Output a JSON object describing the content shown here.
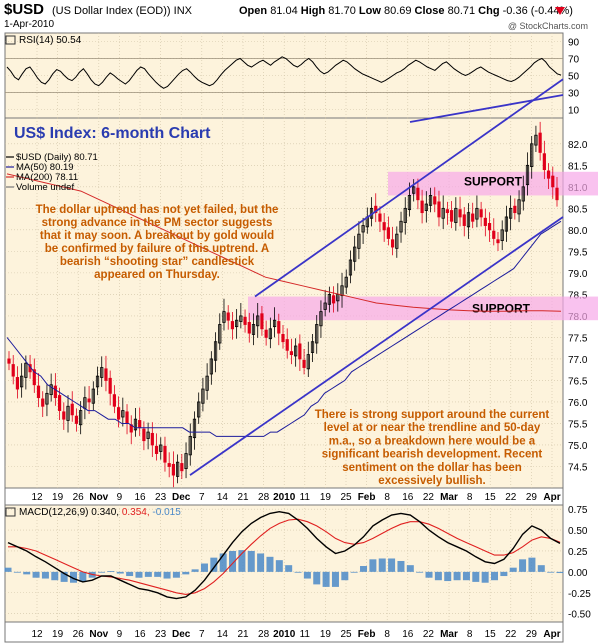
{
  "header": {
    "symbol": "$USD",
    "name": "(US Dollar Index (EOD)) INX",
    "date": "1-Apr-2010",
    "open_label": "Open",
    "open": "81.04",
    "high_label": "High",
    "high": "81.70",
    "low_label": "Low",
    "low": "80.69",
    "close_label": "Close",
    "close": "80.71",
    "chg_label": "Chg",
    "chg": "-0.36 (-0.44%)",
    "watermark": "@ StockCharts.com"
  },
  "colors": {
    "background": "#fdf3dc",
    "rsi_line": "#000000",
    "price_up": "#000000",
    "price_down": "#e0001b",
    "ma50": "#1c1c9c",
    "ma200": "#d42828",
    "trendline": "#3a34c8",
    "support_band": "#f6a8e8",
    "annotation": "#c65c00",
    "title": "#2a3cb0",
    "macd_line": "#000000",
    "signal_line": "#e02020",
    "histogram": "#4a88c8"
  },
  "chart_data": [
    {
      "type": "line",
      "panel": "rsi",
      "label": "RSI(14) 50.54",
      "ylim": [
        0,
        100
      ],
      "ticks": [
        10,
        30,
        50,
        70,
        90
      ],
      "reference_lines": [
        30,
        70
      ],
      "series": [
        {
          "name": "RSI(14)",
          "values": [
            60,
            55,
            48,
            45,
            52,
            58,
            60,
            54,
            47,
            42,
            40,
            45,
            52,
            57,
            55,
            50,
            46,
            44,
            48,
            54,
            58,
            52,
            45,
            40,
            38,
            42,
            48,
            53,
            50,
            46,
            43,
            40,
            44,
            50,
            56,
            60,
            58,
            52,
            47,
            42,
            38,
            35,
            37,
            42,
            47,
            52,
            56,
            58,
            54,
            49,
            45,
            42,
            40,
            38,
            40,
            45,
            51,
            56,
            60,
            64,
            68,
            70,
            66,
            62,
            60,
            63,
            66,
            68,
            65,
            62,
            66,
            69,
            72,
            70,
            66,
            62,
            60,
            63,
            67,
            70,
            66,
            60,
            55,
            52,
            54,
            58,
            62,
            65,
            68,
            66,
            62,
            58,
            55,
            52,
            50,
            48,
            46,
            44,
            42,
            44,
            47,
            50,
            53,
            55,
            58,
            62,
            65,
            68,
            66,
            63,
            60,
            58,
            56,
            60,
            64,
            66,
            62,
            58,
            55,
            52,
            50,
            52,
            55,
            58,
            60,
            57,
            54,
            52,
            50,
            48,
            46,
            44,
            43,
            45,
            48,
            52,
            56,
            60,
            65,
            68,
            70,
            66,
            60,
            56,
            52,
            50.5
          ]
        }
      ]
    },
    {
      "type": "candlestick",
      "panel": "price",
      "title": "US$ Index: 6-month Chart",
      "legend": [
        "$USD (Daily) 80.71",
        "MA(50) 80.19",
        "MA(200) 78.11",
        "Volume undef"
      ],
      "ylim": [
        74.0,
        82.6
      ],
      "ticks": [
        74.5,
        75.0,
        75.5,
        76.0,
        76.5,
        77.0,
        77.5,
        78.0,
        78.5,
        79.0,
        79.5,
        80.0,
        80.5,
        81.0,
        81.5,
        82.0
      ],
      "closes": [
        76.9,
        76.6,
        76.3,
        76.6,
        76.9,
        76.7,
        76.4,
        76.1,
        75.9,
        76.2,
        76.4,
        76.1,
        75.8,
        75.6,
        75.9,
        75.7,
        75.5,
        75.8,
        76.1,
        76.0,
        76.3,
        76.6,
        76.8,
        76.5,
        76.2,
        75.9,
        75.6,
        75.8,
        75.5,
        75.3,
        75.6,
        75.4,
        75.1,
        75.3,
        75.0,
        74.8,
        75.0,
        74.6,
        74.5,
        74.3,
        74.6,
        74.4,
        74.8,
        75.2,
        75.6,
        76.0,
        76.3,
        76.6,
        77.0,
        77.4,
        77.8,
        78.1,
        77.9,
        77.7,
        77.9,
        78.0,
        77.8,
        77.6,
        77.8,
        78.0,
        77.7,
        77.5,
        77.7,
        77.9,
        77.6,
        77.4,
        77.2,
        77.1,
        77.3,
        77.0,
        76.8,
        77.1,
        77.4,
        77.8,
        78.1,
        78.3,
        78.5,
        78.3,
        78.5,
        78.7,
        78.9,
        79.3,
        79.6,
        79.9,
        80.1,
        80.3,
        80.5,
        80.4,
        80.2,
        80.0,
        79.8,
        79.6,
        79.9,
        80.2,
        80.5,
        80.8,
        81.0,
        80.7,
        80.4,
        80.6,
        80.8,
        80.6,
        80.3,
        80.5,
        80.4,
        80.2,
        80.5,
        80.3,
        80.1,
        80.4,
        80.2,
        80.5,
        80.3,
        80.1,
        80.0,
        79.8,
        79.7,
        80.0,
        80.3,
        80.5,
        80.4,
        80.7,
        81.0,
        81.5,
        82.0,
        82.2,
        81.8,
        81.4,
        81.2,
        81.0,
        80.7
      ],
      "ma50": [
        77.5,
        77.3,
        77.1,
        76.9,
        76.7,
        76.6,
        76.4,
        76.3,
        76.2,
        76.1,
        76.0,
        75.9,
        75.8,
        75.8,
        75.7,
        75.6,
        75.6,
        75.5,
        75.5,
        75.4,
        75.4,
        75.4,
        75.4,
        75.4,
        75.4,
        75.4,
        75.4,
        75.3,
        75.3,
        75.3,
        75.3,
        75.2,
        75.2,
        75.2,
        75.2,
        75.2,
        75.2,
        75.2,
        75.2,
        75.3,
        75.3,
        75.4,
        75.5,
        75.6,
        75.7,
        75.9,
        76.0,
        76.2,
        76.3,
        76.4,
        76.5,
        76.7,
        76.8,
        76.9,
        77.0,
        77.1,
        77.2,
        77.3,
        77.4,
        77.5,
        77.6,
        77.7,
        77.8,
        77.9,
        78.0,
        78.1,
        78.2,
        78.3,
        78.4,
        78.5,
        78.6,
        78.7,
        78.8,
        78.9,
        79.0,
        79.1,
        79.3,
        79.5,
        79.7,
        79.9,
        80.0,
        80.1,
        80.2
      ],
      "ma200": [
        81.3,
        81.2,
        81.1,
        81.0,
        80.9,
        80.7,
        80.5,
        80.3,
        80.1,
        79.9,
        79.7,
        79.5,
        79.3,
        79.1,
        78.9,
        78.8,
        78.7,
        78.6,
        78.5,
        78.4,
        78.3,
        78.25,
        78.2,
        78.17,
        78.14,
        78.12,
        78.11,
        78.11,
        78.12,
        78.12,
        78.11
      ],
      "support_zones": [
        {
          "label": "SUPPORT",
          "ymin": 80.8,
          "ymax": 81.35
        },
        {
          "label": "SUPPORT",
          "ymin": 77.9,
          "ymax": 78.45
        }
      ],
      "annotations": [
        {
          "text": [
            "The dollar uptrend has not yet failed, but the",
            "strong advance in the PM sector suggests",
            "that it may soon. A breakout by gold would",
            "be confirmed by failure of this uptrend. A",
            "bearish “shooting star” candlestick",
            "appeared on Thursday."
          ]
        },
        {
          "text": [
            "There is strong support around the current",
            "level at or near the trendline and 50-day",
            "m.a., so a breakdown here would be a",
            "significant bearish development. Recent",
            "sentiment on the dollar has been",
            "excessively bullish."
          ]
        }
      ]
    },
    {
      "type": "line",
      "panel": "macd",
      "label_prefix": "MACD(12,26,9)",
      "label_macd": "0.340",
      "label_signal": "0.354",
      "label_hist": "-0.015",
      "ylim": [
        -0.6,
        0.8
      ],
      "ticks": [
        -0.5,
        -0.25,
        0.0,
        0.25,
        0.5,
        0.75
      ],
      "series": [
        {
          "name": "MACD",
          "values": [
            0.35,
            0.3,
            0.25,
            0.18,
            0.12,
            0.05,
            -0.02,
            -0.08,
            -0.12,
            -0.1,
            -0.05,
            -0.05,
            -0.1,
            -0.15,
            -0.2,
            -0.22,
            -0.25,
            -0.3,
            -0.32,
            -0.3,
            -0.22,
            -0.1,
            0.05,
            0.2,
            0.35,
            0.48,
            0.58,
            0.65,
            0.7,
            0.72,
            0.7,
            0.62,
            0.52,
            0.4,
            0.3,
            0.22,
            0.25,
            0.32,
            0.42,
            0.55,
            0.62,
            0.68,
            0.7,
            0.68,
            0.6,
            0.5,
            0.42,
            0.35,
            0.3,
            0.25,
            0.18,
            0.12,
            0.1,
            0.15,
            0.28,
            0.45,
            0.55,
            0.5,
            0.4,
            0.34
          ]
        },
        {
          "name": "Signal",
          "values": [
            0.3,
            0.3,
            0.28,
            0.25,
            0.2,
            0.15,
            0.1,
            0.05,
            0.0,
            -0.03,
            -0.05,
            -0.06,
            -0.08,
            -0.1,
            -0.13,
            -0.16,
            -0.19,
            -0.22,
            -0.25,
            -0.27,
            -0.25,
            -0.2,
            -0.12,
            -0.02,
            0.1,
            0.22,
            0.33,
            0.43,
            0.52,
            0.58,
            0.62,
            0.63,
            0.6,
            0.55,
            0.48,
            0.4,
            0.35,
            0.33,
            0.35,
            0.4,
            0.46,
            0.52,
            0.57,
            0.6,
            0.6,
            0.57,
            0.52,
            0.46,
            0.4,
            0.35,
            0.3,
            0.25,
            0.2,
            0.2,
            0.23,
            0.3,
            0.38,
            0.42,
            0.4,
            0.354
          ]
        }
      ]
    }
  ],
  "x_axis": {
    "ticks": [
      "12",
      "19",
      "26",
      "Nov",
      "9",
      "16",
      "23",
      "Dec",
      "7",
      "14",
      "21",
      "28",
      "2010",
      "11",
      "19",
      "25",
      "Feb",
      "8",
      "16",
      "22",
      "Mar",
      "8",
      "15",
      "22",
      "29",
      "Apr"
    ],
    "bold": [
      "Nov",
      "Dec",
      "2010",
      "Feb",
      "Mar",
      "Apr"
    ]
  }
}
